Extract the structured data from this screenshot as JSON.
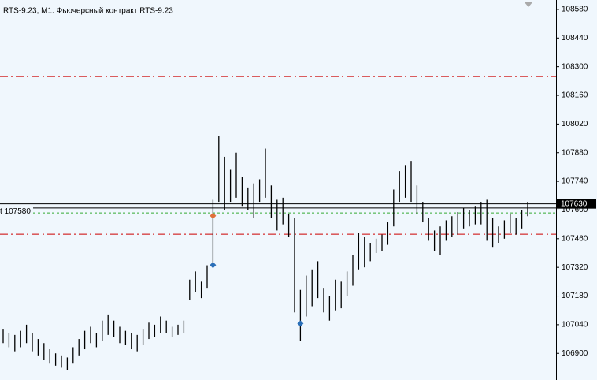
{
  "chart_data": {
    "type": "hilo",
    "title": "RTS-9.23, M1:  Фьючерсный контракт RTS-9.23",
    "ylim": [
      106770,
      108626
    ],
    "yticks": [
      108580,
      108440,
      108300,
      108160,
      108020,
      107880,
      107740,
      107600,
      107460,
      107320,
      107180,
      107040,
      106900
    ],
    "color": "#000000",
    "high": [
      107020,
      107000,
      106990,
      107010,
      107040,
      107000,
      106970,
      106950,
      106920,
      106900,
      106890,
      106880,
      106930,
      106970,
      107010,
      107030,
      107000,
      107060,
      107090,
      107060,
      107030,
      107010,
      107000,
      106990,
      107020,
      107050,
      107040,
      107080,
      107060,
      107030,
      107040,
      107060,
      107260,
      107300,
      107250,
      107330,
      107650,
      107960,
      107860,
      107800,
      107880,
      107760,
      107710,
      107730,
      107750,
      107900,
      107720,
      107650,
      107660,
      107580,
      107560,
      107210,
      107280,
      107310,
      107350,
      107220,
      107180,
      107260,
      107250,
      107300,
      107380,
      107490,
      107470,
      107440,
      107460,
      107480,
      107540,
      107700,
      107790,
      107820,
      107840,
      107720,
      107640,
      107560,
      107500,
      107520,
      107550,
      107570,
      107590,
      107610,
      107600,
      107620,
      107640,
      107650,
      107560,
      107520,
      107550,
      107580,
      107560,
      107600,
      107640
    ],
    "low": [
      106950,
      106930,
      106910,
      106930,
      106950,
      106910,
      106890,
      106870,
      106850,
      106840,
      106830,
      106820,
      106850,
      106890,
      106920,
      106950,
      106930,
      106960,
      106990,
      106980,
      106950,
      106940,
      106920,
      106910,
      106940,
      106970,
      106980,
      107000,
      107000,
      106980,
      106990,
      107000,
      107160,
      107200,
      107170,
      107220,
      107330,
      107640,
      107600,
      107640,
      107660,
      107620,
      107600,
      107560,
      107640,
      107660,
      107560,
      107500,
      107530,
      107470,
      107100,
      106960,
      107080,
      107130,
      107170,
      107100,
      107060,
      107110,
      107120,
      107180,
      107230,
      107310,
      107320,
      107350,
      107390,
      107400,
      107430,
      107520,
      107640,
      107660,
      107640,
      107580,
      107540,
      107450,
      107400,
      107380,
      107450,
      107470,
      107480,
      107510,
      107520,
      107530,
      107530,
      107450,
      107420,
      107440,
      107460,
      107490,
      107480,
      107510,
      107570
    ],
    "levels": [
      {
        "value": 108252,
        "color": "#cc0000",
        "style": "dashdot"
      },
      {
        "value": 107482,
        "color": "#cc0000",
        "style": "dashdot"
      },
      {
        "value": 107586,
        "color": "#33aa33",
        "style": "dashed"
      },
      {
        "value": 107630,
        "color": "#000000",
        "style": "solid"
      },
      {
        "value": 107610,
        "color": "#000000",
        "style": "solid"
      }
    ],
    "current_price": 107630,
    "bid_label": "t 107580",
    "markers": [
      {
        "bar": 36,
        "value": 107572,
        "color": "#e0703a"
      },
      {
        "bar": 36,
        "value": 107331,
        "color": "#2a6fb8"
      },
      {
        "bar": 51,
        "value": 107046,
        "color": "#2a6fb8"
      }
    ]
  }
}
